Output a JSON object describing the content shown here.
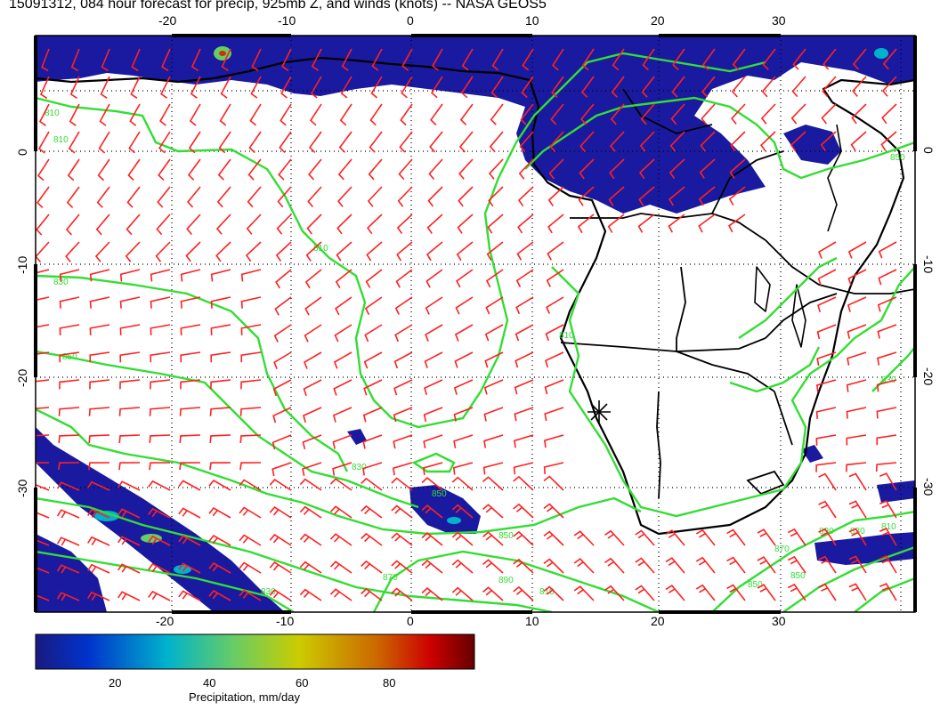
{
  "title": "15091312, 084 hour forecast for precip, 925mb Z, and winds (knots) -- NASA GEOS5",
  "axes": {
    "x_ticks": [
      "-20",
      "-10",
      "0",
      "10",
      "20",
      "30"
    ],
    "y_ticks": [
      "0",
      "-10",
      "-20",
      "-30"
    ]
  },
  "colorbar": {
    "ticks": [
      "20",
      "40",
      "60",
      "80"
    ],
    "label": "Precipitation, mm/day",
    "colors": [
      "#1a1a80",
      "#0033cc",
      "#00b3cc",
      "#66cc66",
      "#cccc00",
      "#cc6600",
      "#cc0000",
      "#660000"
    ]
  },
  "contour_labels": [
    "810",
    "810",
    "810",
    "830",
    "850",
    "830",
    "850",
    "850",
    "870",
    "890",
    "830",
    "810",
    "850",
    "850",
    "870",
    "890",
    "830",
    "810",
    "850",
    "830",
    "810"
  ],
  "colors": {
    "wind_barbs": "#ff2020",
    "contours": "#33dd33",
    "coast": "#000000",
    "precip": "#1a1aa0"
  },
  "marker": "station-star"
}
